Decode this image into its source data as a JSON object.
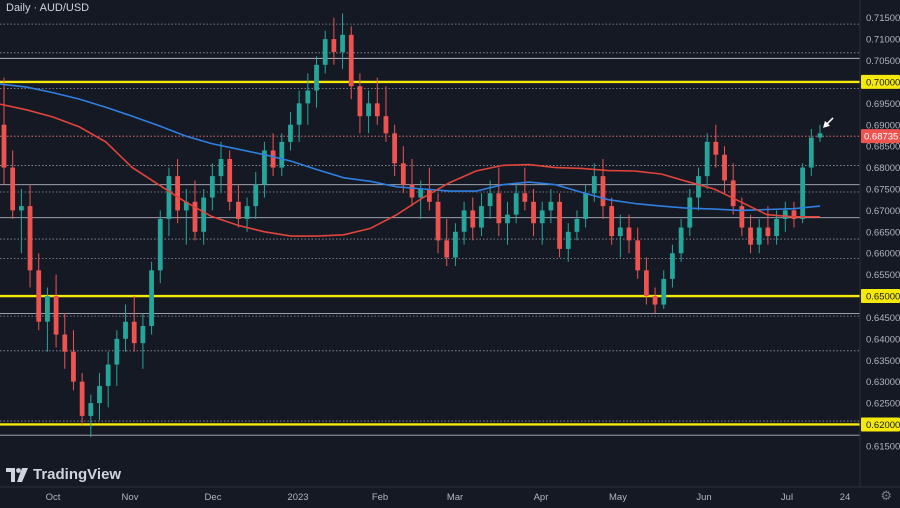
{
  "chart_data": {
    "type": "candlestick",
    "title": "Daily · AUD/USD",
    "watermark": "TradingView",
    "xlabels": [
      "Oct",
      "Nov",
      "Dec",
      "2023",
      "Feb",
      "Mar",
      "Apr",
      "May",
      "Jun",
      "Jul",
      "24"
    ],
    "yticks": [
      0.615,
      0.62,
      0.625,
      0.63,
      0.635,
      0.64,
      0.645,
      0.65,
      0.655,
      0.66,
      0.665,
      0.67,
      0.675,
      0.68,
      0.685,
      0.69,
      0.695,
      0.7,
      0.705,
      0.71,
      0.715
    ],
    "ylim": [
      0.6075,
      0.7168
    ],
    "key_levels": [
      0.62,
      0.65,
      0.7
    ],
    "current_price": 0.68735,
    "dotted_levels": [
      0.7135,
      0.7068,
      0.6985,
      0.6873,
      0.6805,
      0.6743,
      0.6633,
      0.6588,
      0.6453,
      0.6372,
      0.6208
    ],
    "solid_levels": [
      0.7055,
      0.676,
      0.6683,
      0.6459,
      0.6175
    ],
    "sma_blue": [
      0.6995,
      0.6988,
      0.6975,
      0.696,
      0.6941,
      0.692,
      0.6898,
      0.6874,
      0.6856,
      0.6843,
      0.683,
      0.6815,
      0.6795,
      0.6776,
      0.6768,
      0.6755,
      0.675,
      0.6745,
      0.6745,
      0.676,
      0.6766,
      0.676,
      0.6742,
      0.6725,
      0.6716,
      0.671,
      0.6705,
      0.6703,
      0.67,
      0.6702,
      0.6704,
      0.671
    ],
    "sma_red": [
      0.6948,
      0.6935,
      0.6918,
      0.6895,
      0.686,
      0.68,
      0.676,
      0.672,
      0.6686,
      0.6665,
      0.665,
      0.664,
      0.664,
      0.6643,
      0.6658,
      0.669,
      0.673,
      0.6765,
      0.6792,
      0.6805,
      0.6807,
      0.68,
      0.6798,
      0.6793,
      0.6792,
      0.6785,
      0.6767,
      0.675,
      0.672,
      0.669,
      0.6685,
      0.6685
    ],
    "candles": [
      [
        0.69,
        0.701,
        0.676,
        0.68
      ],
      [
        0.68,
        0.684,
        0.668,
        0.67
      ],
      [
        0.67,
        0.675,
        0.66,
        0.671
      ],
      [
        0.671,
        0.676,
        0.652,
        0.656
      ],
      [
        0.656,
        0.66,
        0.642,
        0.644
      ],
      [
        0.644,
        0.652,
        0.637,
        0.65
      ],
      [
        0.65,
        0.655,
        0.638,
        0.641
      ],
      [
        0.641,
        0.646,
        0.633,
        0.637
      ],
      [
        0.637,
        0.642,
        0.628,
        0.63
      ],
      [
        0.63,
        0.632,
        0.62,
        0.622
      ],
      [
        0.622,
        0.627,
        0.617,
        0.625
      ],
      [
        0.625,
        0.632,
        0.621,
        0.629
      ],
      [
        0.629,
        0.637,
        0.624,
        0.634
      ],
      [
        0.634,
        0.642,
        0.629,
        0.64
      ],
      [
        0.64,
        0.648,
        0.637,
        0.644
      ],
      [
        0.644,
        0.65,
        0.637,
        0.639
      ],
      [
        0.639,
        0.646,
        0.633,
        0.643
      ],
      [
        0.643,
        0.658,
        0.641,
        0.656
      ],
      [
        0.656,
        0.67,
        0.653,
        0.668
      ],
      [
        0.668,
        0.68,
        0.664,
        0.678
      ],
      [
        0.678,
        0.682,
        0.667,
        0.67
      ],
      [
        0.67,
        0.675,
        0.662,
        0.672
      ],
      [
        0.672,
        0.677,
        0.663,
        0.665
      ],
      [
        0.665,
        0.675,
        0.662,
        0.673
      ],
      [
        0.673,
        0.681,
        0.67,
        0.678
      ],
      [
        0.678,
        0.686,
        0.674,
        0.682
      ],
      [
        0.682,
        0.684,
        0.67,
        0.672
      ],
      [
        0.672,
        0.676,
        0.666,
        0.668
      ],
      [
        0.668,
        0.673,
        0.665,
        0.671
      ],
      [
        0.671,
        0.679,
        0.668,
        0.676
      ],
      [
        0.676,
        0.686,
        0.673,
        0.684
      ],
      [
        0.684,
        0.688,
        0.678,
        0.68
      ],
      [
        0.68,
        0.688,
        0.678,
        0.686
      ],
      [
        0.686,
        0.693,
        0.684,
        0.69
      ],
      [
        0.69,
        0.698,
        0.686,
        0.695
      ],
      [
        0.695,
        0.702,
        0.69,
        0.698
      ],
      [
        0.698,
        0.706,
        0.694,
        0.704
      ],
      [
        0.704,
        0.712,
        0.702,
        0.71
      ],
      [
        0.71,
        0.715,
        0.704,
        0.707
      ],
      [
        0.707,
        0.716,
        0.703,
        0.711
      ],
      [
        0.711,
        0.713,
        0.696,
        0.699
      ],
      [
        0.699,
        0.702,
        0.688,
        0.692
      ],
      [
        0.692,
        0.698,
        0.688,
        0.695
      ],
      [
        0.695,
        0.701,
        0.69,
        0.692
      ],
      [
        0.692,
        0.699,
        0.686,
        0.688
      ],
      [
        0.688,
        0.69,
        0.678,
        0.681
      ],
      [
        0.681,
        0.685,
        0.674,
        0.676
      ],
      [
        0.676,
        0.682,
        0.671,
        0.673
      ],
      [
        0.673,
        0.677,
        0.668,
        0.675
      ],
      [
        0.675,
        0.68,
        0.67,
        0.672
      ],
      [
        0.672,
        0.674,
        0.66,
        0.663
      ],
      [
        0.663,
        0.668,
        0.657,
        0.659
      ],
      [
        0.659,
        0.667,
        0.657,
        0.665
      ],
      [
        0.665,
        0.672,
        0.662,
        0.67
      ],
      [
        0.67,
        0.673,
        0.663,
        0.666
      ],
      [
        0.666,
        0.674,
        0.664,
        0.671
      ],
      [
        0.671,
        0.677,
        0.668,
        0.674
      ],
      [
        0.674,
        0.68,
        0.664,
        0.667
      ],
      [
        0.667,
        0.672,
        0.662,
        0.669
      ],
      [
        0.669,
        0.676,
        0.667,
        0.674
      ],
      [
        0.674,
        0.68,
        0.67,
        0.672
      ],
      [
        0.672,
        0.675,
        0.664,
        0.667
      ],
      [
        0.667,
        0.672,
        0.662,
        0.67
      ],
      [
        0.67,
        0.675,
        0.667,
        0.672
      ],
      [
        0.672,
        0.674,
        0.659,
        0.661
      ],
      [
        0.661,
        0.667,
        0.658,
        0.665
      ],
      [
        0.665,
        0.67,
        0.663,
        0.668
      ],
      [
        0.668,
        0.676,
        0.666,
        0.674
      ],
      [
        0.674,
        0.681,
        0.672,
        0.678
      ],
      [
        0.678,
        0.682,
        0.668,
        0.671
      ],
      [
        0.671,
        0.673,
        0.662,
        0.664
      ],
      [
        0.664,
        0.669,
        0.659,
        0.666
      ],
      [
        0.666,
        0.669,
        0.66,
        0.663
      ],
      [
        0.663,
        0.666,
        0.654,
        0.656
      ],
      [
        0.656,
        0.659,
        0.648,
        0.65
      ],
      [
        0.65,
        0.652,
        0.646,
        0.648
      ],
      [
        0.648,
        0.656,
        0.647,
        0.654
      ],
      [
        0.654,
        0.662,
        0.652,
        0.66
      ],
      [
        0.66,
        0.668,
        0.658,
        0.666
      ],
      [
        0.666,
        0.675,
        0.664,
        0.673
      ],
      [
        0.673,
        0.68,
        0.67,
        0.678
      ],
      [
        0.678,
        0.688,
        0.675,
        0.686
      ],
      [
        0.686,
        0.69,
        0.68,
        0.683
      ],
      [
        0.683,
        0.685,
        0.674,
        0.677
      ],
      [
        0.677,
        0.681,
        0.669,
        0.671
      ],
      [
        0.671,
        0.673,
        0.664,
        0.666
      ],
      [
        0.666,
        0.669,
        0.66,
        0.662
      ],
      [
        0.662,
        0.668,
        0.66,
        0.666
      ],
      [
        0.666,
        0.671,
        0.662,
        0.664
      ],
      [
        0.664,
        0.67,
        0.662,
        0.668
      ],
      [
        0.668,
        0.672,
        0.665,
        0.67
      ],
      [
        0.67,
        0.672,
        0.666,
        0.668
      ],
      [
        0.668,
        0.681,
        0.667,
        0.68
      ],
      [
        0.68,
        0.689,
        0.678,
        0.687
      ],
      [
        0.687,
        0.69,
        0.686,
        0.688
      ]
    ]
  },
  "labels": {
    "price_tag": "0.68735",
    "settings_icon": "gear-icon"
  }
}
